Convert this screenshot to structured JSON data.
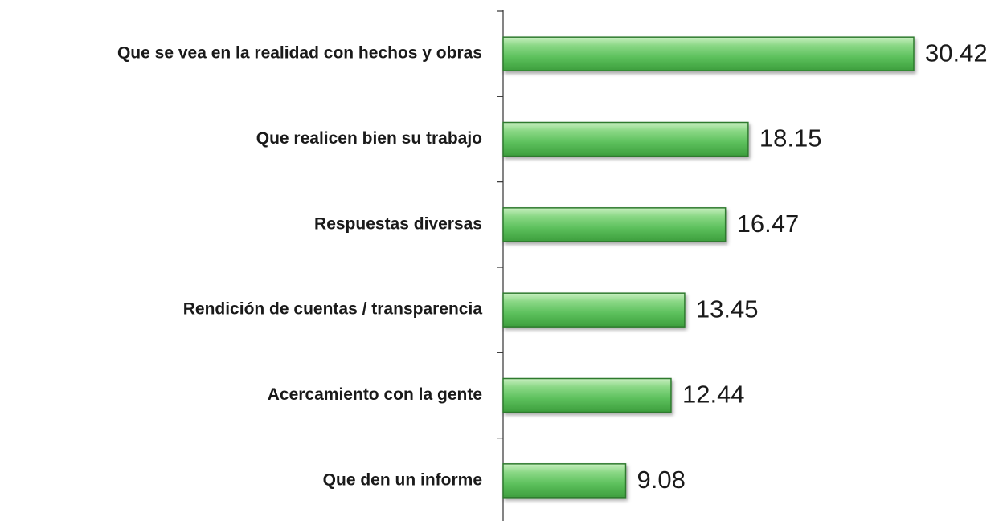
{
  "chart_data": {
    "type": "bar",
    "orientation": "horizontal",
    "categories": [
      "Que se vea en la realidad con hechos y obras",
      "Que realicen bien su trabajo",
      "Respuestas diversas",
      "Rendición de cuentas / transparencia",
      "Acercamiento con la gente",
      "Que den un informe"
    ],
    "values": [
      30.42,
      18.15,
      16.47,
      13.45,
      12.44,
      9.08
    ],
    "color": "#5cc05c"
  }
}
